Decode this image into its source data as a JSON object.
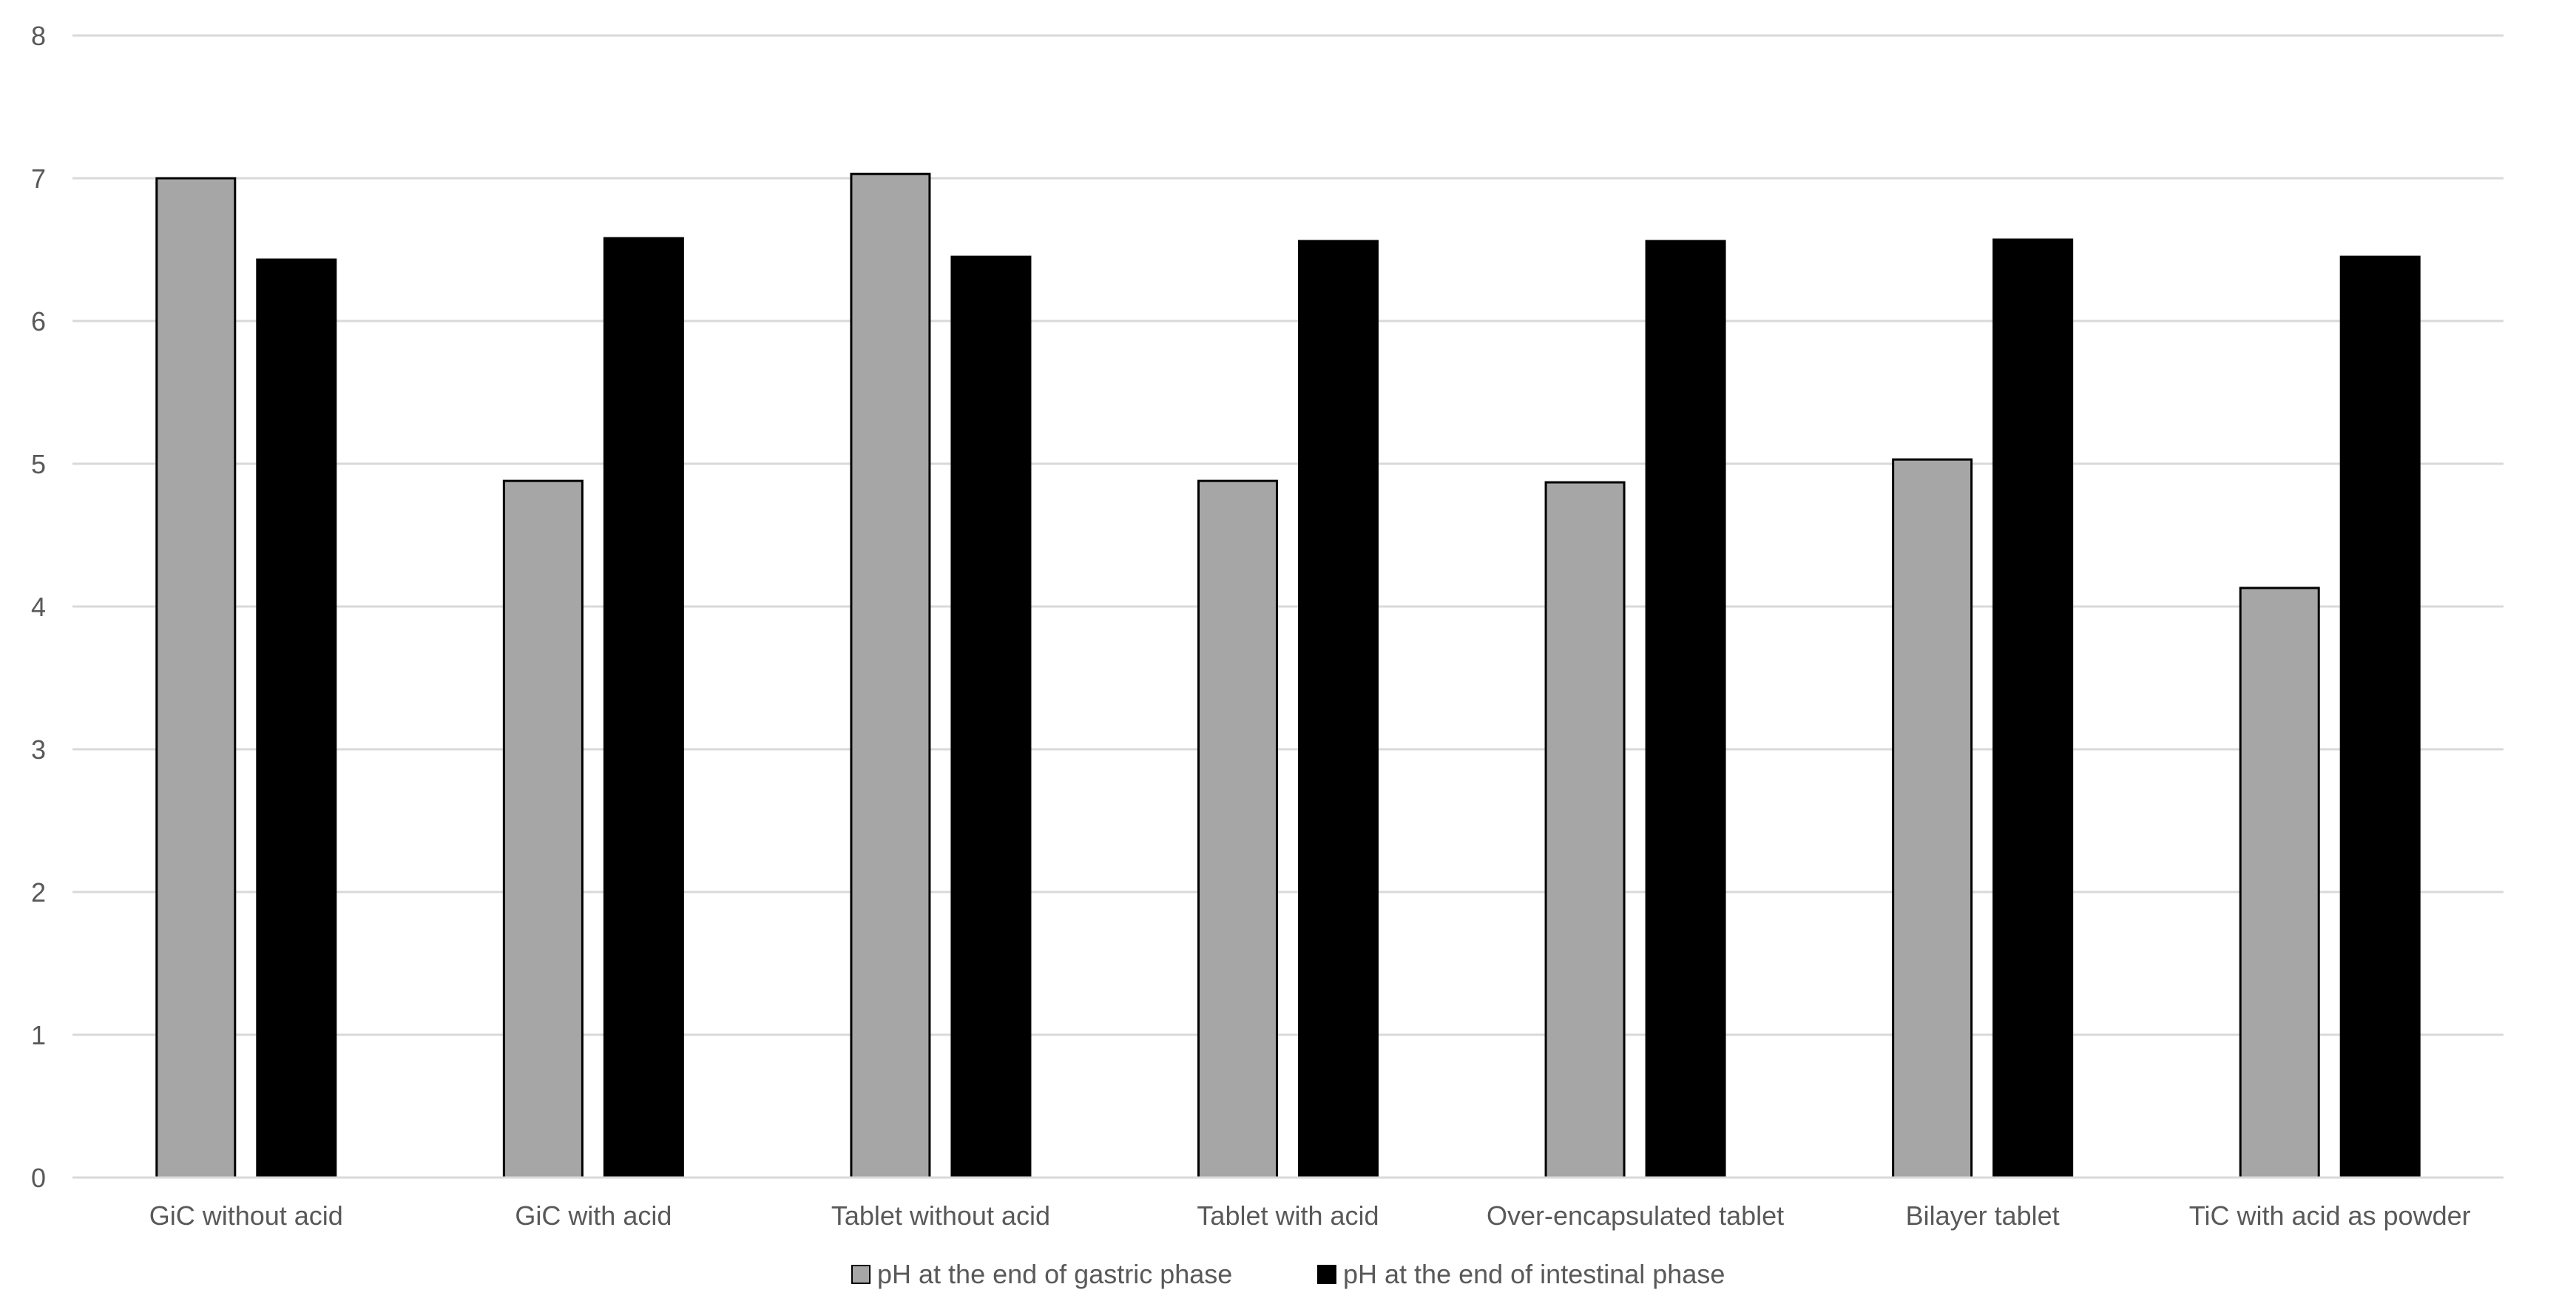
{
  "chart_data": {
    "type": "bar",
    "categories": [
      "GiC without acid",
      "GiC with acid",
      "Tablet without acid",
      "Tablet with acid",
      "Over-encapsulated tablet",
      "Bilayer tablet",
      "TiC with acid as powder"
    ],
    "series": [
      {
        "name": "pH at the end of gastric phase",
        "values": [
          7.0,
          4.88,
          7.03,
          4.88,
          4.87,
          5.03,
          4.13
        ],
        "color": "#a6a6a6"
      },
      {
        "name": "pH at the end of intestinal phase",
        "values": [
          6.43,
          6.58,
          6.45,
          6.56,
          6.56,
          6.57,
          6.45
        ],
        "color": "#000000"
      }
    ],
    "yticks": [
      "0",
      "1",
      "2",
      "3",
      "4",
      "5",
      "6",
      "7",
      "8"
    ],
    "ylim": [
      0,
      8
    ],
    "grid": true,
    "legend": "bottom"
  }
}
